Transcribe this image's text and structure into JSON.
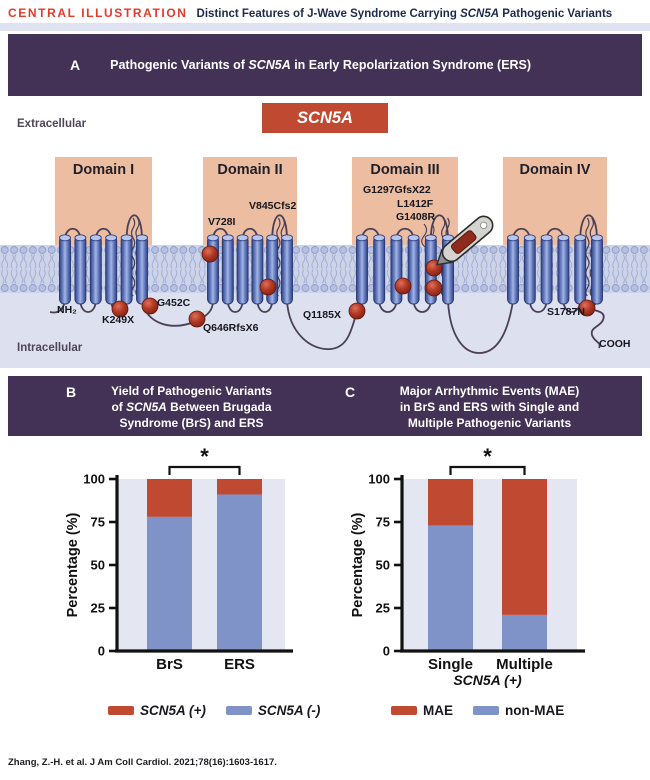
{
  "header": {
    "kicker": "CENTRAL ILLUSTRATION",
    "title_pre": "Distinct Features of J-Wave Syndrome Carrying ",
    "title_gene": "SCN5A",
    "title_post": " Pathogenic Variants"
  },
  "panelA": {
    "label": "A",
    "title_pre": "Pathogenic Variants of ",
    "title_gene": "SCN5A",
    "title_post": " in Early Repolarization Syndrome (ERS)",
    "gene_box_label": "SCN5A",
    "extracellular_label": "Extracellular",
    "intracellular_label": "Intracellular",
    "nh2_label": "NH₂",
    "cooh_label": "COOH",
    "domains": [
      {
        "label": "Domain I"
      },
      {
        "label": "Domain II"
      },
      {
        "label": "Domain III"
      },
      {
        "label": "Domain IV"
      }
    ],
    "variants": [
      "K249X",
      "G452C",
      "Q646RfsX6",
      "V728I",
      "V845Cfs2",
      "Q1185X",
      "G1297GfsX22",
      "L1412F",
      "G1408R",
      "S1787N"
    ]
  },
  "panelB": {
    "label": "B",
    "title_line1": "Yield of Pathogenic Variants",
    "title_line2_pre": "of ",
    "title_line2_gene": "SCN5A",
    "title_line2_post": " Between Brugada",
    "title_line3": "Syndrome (BrS) and ERS"
  },
  "panelC": {
    "label": "C",
    "title_line1": "Major Arrhythmic Events (MAE)",
    "title_line2": "in BrS and ERS with Single and",
    "title_line3": "Multiple Pathogenic Variants"
  },
  "chart_data": [
    {
      "id": "panel-b-chart",
      "type": "stacked-bar",
      "title": "Yield of Pathogenic Variants of SCN5A Between Brugada Syndrome (BrS) and ERS",
      "categories": [
        "BrS",
        "ERS"
      ],
      "series": [
        {
          "name": "SCN5A (+)",
          "color": "#c04a31",
          "values": [
            22,
            9
          ]
        },
        {
          "name": "SCN5A (-)",
          "color": "#7f93c8",
          "values": [
            78,
            91
          ]
        }
      ],
      "ylabel": "Percentage (%)",
      "xlabel": "",
      "yticks": [
        0,
        25,
        50,
        75,
        100
      ],
      "ylim": [
        0,
        100
      ],
      "significance": "*",
      "legend_position": "below",
      "grid": false
    },
    {
      "id": "panel-c-chart",
      "type": "stacked-bar",
      "title": "Major Arrhythmic Events (MAE) in BrS and ERS with Single and Multiple Pathogenic Variants",
      "categories": [
        "Single",
        "Multiple"
      ],
      "series": [
        {
          "name": "MAE",
          "color": "#c04a31",
          "values": [
            27,
            79
          ]
        },
        {
          "name": "non-MAE",
          "color": "#7f93c8",
          "values": [
            73,
            21
          ]
        }
      ],
      "ylabel": "Percentage (%)",
      "xlabel": "SCN5A (+)",
      "yticks": [
        0,
        25,
        50,
        75,
        100
      ],
      "ylim": [
        0,
        100
      ],
      "significance": "*",
      "legend_position": "below",
      "grid": false
    }
  ],
  "footer": "Zhang, Z.-H. et al. J Am Coll Cardiol. 2021;78(16):1603-1617.",
  "colors": {
    "banner_purple": "#433156",
    "kicker_red": "#e23b2c",
    "header_navy": "#1e2a4d",
    "gene_box_red": "#c04a31",
    "bar_red": "#c04a31",
    "bar_blue": "#7f93c8",
    "plot_background": "#e4e6f2",
    "domain_peach": "#ecbda1",
    "membrane_band": "#cdd4e9",
    "intracellular_bg": "#dde0ee",
    "helix_blue": "#3c509a",
    "variant_sphere_red": "#a93322"
  }
}
